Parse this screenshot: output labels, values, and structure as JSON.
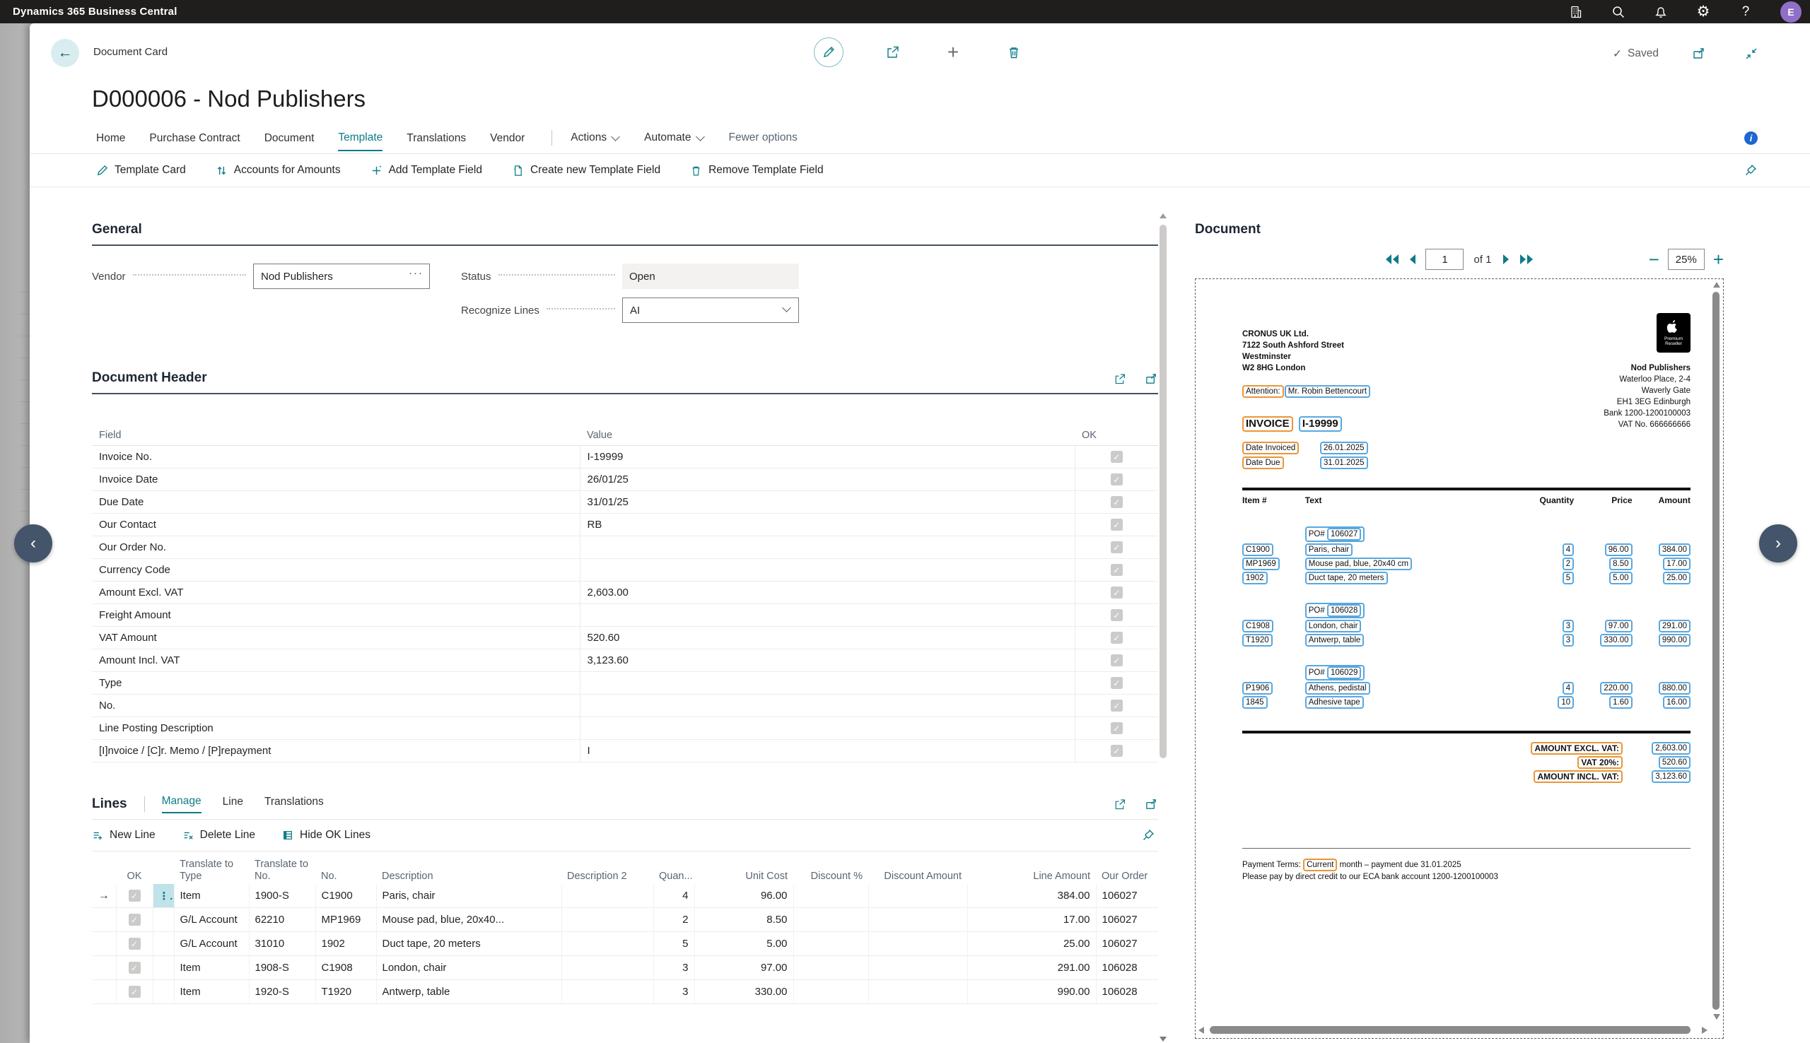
{
  "colors": {
    "accent": "#0d7c87",
    "annotation_orange": "#eb9537",
    "annotation_blue": "#57a8e0",
    "avatar": "#8f6fc8",
    "topbar": "#1f1e1d"
  },
  "topbar": {
    "title": "Dynamics 365 Business Central",
    "avatar_initial": "E",
    "help_glyph": "?",
    "gear_glyph": "⚙"
  },
  "page_header": {
    "breadcrumb": "Document Card",
    "title": "D000006 - Nod Publishers",
    "saved_label": "Saved"
  },
  "nav_tabs": [
    "Home",
    "Purchase Contract",
    "Document",
    "Template",
    "Translations",
    "Vendor"
  ],
  "nav_menus": {
    "actions": "Actions",
    "automate": "Automate",
    "fewer": "Fewer options"
  },
  "action_bar": [
    "Template Card",
    "Accounts for Amounts",
    "Add Template Field",
    "Create new Template Field",
    "Remove Template Field"
  ],
  "general": {
    "heading": "General",
    "vendor_label": "Vendor",
    "vendor_value": "Nod Publishers",
    "status_label": "Status",
    "status_value": "Open",
    "recognize_label": "Recognize Lines",
    "recognize_value": "AI"
  },
  "doc_header": {
    "heading": "Document Header",
    "columns": {
      "field": "Field",
      "value": "Value",
      "ok": "OK"
    },
    "rows": [
      {
        "field": "Invoice No.",
        "value": "I-19999",
        "ok": true
      },
      {
        "field": "Invoice Date",
        "value": "26/01/25",
        "ok": true
      },
      {
        "field": "Due Date",
        "value": "31/01/25",
        "ok": true
      },
      {
        "field": "Our Contact",
        "value": "RB",
        "ok": true
      },
      {
        "field": "Our Order No.",
        "value": "",
        "ok": true
      },
      {
        "field": "Currency Code",
        "value": "",
        "ok": true
      },
      {
        "field": "Amount Excl. VAT",
        "value": "2,603.00",
        "ok": true
      },
      {
        "field": "Freight Amount",
        "value": "",
        "ok": true
      },
      {
        "field": "VAT Amount",
        "value": "520.60",
        "ok": true
      },
      {
        "field": "Amount Incl. VAT",
        "value": "3,123.60",
        "ok": true
      },
      {
        "field": "Type",
        "value": "",
        "ok": true
      },
      {
        "field": "No.",
        "value": "",
        "ok": true
      },
      {
        "field": "Line Posting Description",
        "value": "",
        "ok": true
      },
      {
        "field": "[I]nvoice / [C]r. Memo / [P]repayment",
        "value": "I",
        "ok": true
      }
    ]
  },
  "lines": {
    "heading": "Lines",
    "tabs": [
      "Manage",
      "Line",
      "Translations"
    ],
    "selected_tab": "Manage",
    "buttons": [
      "New Line",
      "Delete Line",
      "Hide OK Lines"
    ],
    "columns": {
      "ok": "OK",
      "type": "Translate to Type",
      "to_no": "Translate to No.",
      "no": "No.",
      "desc": "Description",
      "desc2": "Description 2",
      "qty": "Quan...",
      "unit": "Unit Cost",
      "disc_pct": "Discount %",
      "disc_amt": "Discount Amount",
      "line_amt": "Line Amount",
      "order": "Our Order"
    },
    "rows": [
      {
        "ok": true,
        "selected": true,
        "type": "Item",
        "to_no": "1900-S",
        "no": "C1900",
        "desc": "Paris, chair",
        "desc2": "",
        "qty": "4",
        "unit": "96.00",
        "disc_pct": "",
        "disc_amt": "",
        "line_amt": "384.00",
        "order": "106027"
      },
      {
        "ok": true,
        "selected": false,
        "type": "G/L Account",
        "to_no": "62210",
        "no": "MP1969",
        "desc": "Mouse pad, blue, 20x40...",
        "desc2": "",
        "qty": "2",
        "unit": "8.50",
        "disc_pct": "",
        "disc_amt": "",
        "line_amt": "17.00",
        "order": "106027"
      },
      {
        "ok": true,
        "selected": false,
        "type": "G/L Account",
        "to_no": "31010",
        "no": "1902",
        "desc": "Duct tape, 20 meters",
        "desc2": "",
        "qty": "5",
        "unit": "5.00",
        "disc_pct": "",
        "disc_amt": "",
        "line_amt": "25.00",
        "order": "106027"
      },
      {
        "ok": true,
        "selected": false,
        "type": "Item",
        "to_no": "1908-S",
        "no": "C1908",
        "desc": "London, chair",
        "desc2": "",
        "qty": "3",
        "unit": "97.00",
        "disc_pct": "",
        "disc_amt": "",
        "line_amt": "291.00",
        "order": "106028"
      },
      {
        "ok": true,
        "selected": false,
        "type": "Item",
        "to_no": "1920-S",
        "no": "T1920",
        "desc": "Antwerp, table",
        "desc2": "",
        "qty": "3",
        "unit": "330.00",
        "disc_pct": "",
        "disc_amt": "",
        "line_amt": "990.00",
        "order": "106028"
      }
    ]
  },
  "doc_panel": {
    "heading": "Document",
    "page_value": "1",
    "page_of": "of 1",
    "zoom_value": "25%",
    "invoice": {
      "company_lines": [
        "CRONUS UK Ltd.",
        "7122 South Ashford Street",
        "Westminster",
        "W2 8HG London"
      ],
      "attention_label": "Attention:",
      "attention_value": "Mr. Robin Bettencourt",
      "invoice_label": "INVOICE",
      "invoice_no": "I-19999",
      "date_invoiced_label": "Date Invoiced",
      "date_invoiced": "26.01.2025",
      "date_due_label": "Date Due",
      "date_due": "31.01.2025",
      "logo_lines": [
        "Premium",
        "Reseller"
      ],
      "vendor_lines": [
        "Nod Publishers",
        "Waterloo Place, 2-4",
        "Waverly Gate",
        "EH1 3EG Edinburgh",
        "Bank 1200-1200100003",
        "VAT No. 666666666"
      ],
      "table_columns": [
        "Item #",
        "Text",
        "Quantity",
        "Price",
        "Amount"
      ],
      "po_label": "PO#",
      "groups": [
        {
          "po": "106027",
          "items": [
            {
              "no": "C1900",
              "text": "Paris, chair",
              "qty": "4",
              "price": "96.00",
              "amount": "384.00"
            },
            {
              "no": "MP1969",
              "text": "Mouse pad, blue, 20x40 cm",
              "qty": "2",
              "price": "8.50",
              "amount": "17.00"
            },
            {
              "no": "1902",
              "text": "Duct tape, 20 meters",
              "qty": "5",
              "price": "5.00",
              "amount": "25.00"
            }
          ]
        },
        {
          "po": "106028",
          "items": [
            {
              "no": "C1908",
              "text": "London, chair",
              "qty": "3",
              "price": "97.00",
              "amount": "291.00"
            },
            {
              "no": "T1920",
              "text": "Antwerp, table",
              "qty": "3",
              "price": "330.00",
              "amount": "990.00"
            }
          ]
        },
        {
          "po": "106029",
          "items": [
            {
              "no": "P1906",
              "text": "Athens, pedistal",
              "qty": "4",
              "price": "220.00",
              "amount": "880.00"
            },
            {
              "no": "1845",
              "text": "Adhesive tape",
              "qty": "10",
              "price": "1.60",
              "amount": "16.00"
            }
          ]
        }
      ],
      "totals": [
        {
          "label": "AMOUNT EXCL. VAT:",
          "value": "2,603.00"
        },
        {
          "label": "VAT 20%:",
          "value": "520.60"
        },
        {
          "label": "AMOUNT INCL. VAT:",
          "value": "3,123.60"
        }
      ],
      "payment_prefix": "Payment Terms:",
      "payment_highlight": "Current",
      "payment_suffix": "month – payment due 31.01.2025",
      "payment_line2": "Please pay by direct credit to our ECA bank account 1200-1200100003"
    }
  }
}
